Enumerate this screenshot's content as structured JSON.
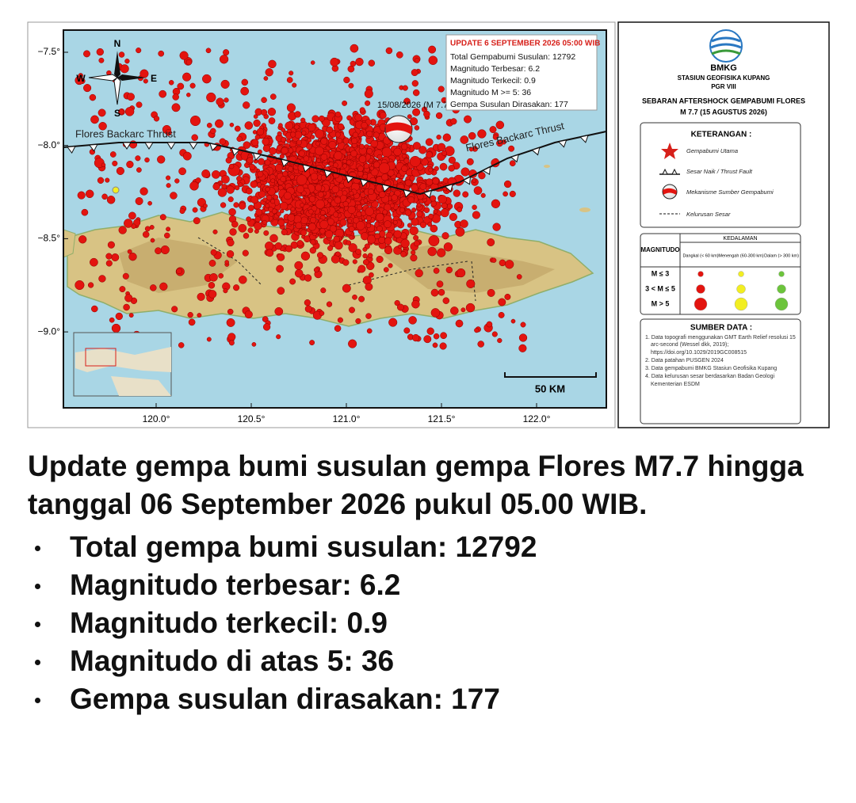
{
  "map": {
    "lat_labels": [
      "−7.5°",
      "−8.0°",
      "−8.5°",
      "−9.0°"
    ],
    "lon_labels": [
      "120.0°",
      "120.5°",
      "121.0°",
      "121.5°",
      "122.0°"
    ],
    "compass": {
      "n": "N",
      "s": "S",
      "e": "E",
      "w": "W"
    },
    "fault_labels": [
      "Flores Backarc Thrust",
      "Flores Backarc Thrust"
    ],
    "mainshock_label": "15/08/2026 (M 7.7)",
    "scale_label": "50 KM",
    "info_box": {
      "title": "UPDATE 6 SEPTEMBER 2026 05:00 WIB",
      "lines": [
        "Total Gempabumi Susulan: 12792",
        "Magnitudo Terbesar: 6.2",
        "Magnitudo Terkecil: 0.9",
        "Magnitudo M >= 5: 36",
        "Gempa Susulan Dirasakan: 177"
      ]
    }
  },
  "legend": {
    "agency": "BMKG",
    "station": "STASIUN GEOFISIKA KUPANG",
    "region": "PGR VIII",
    "title_lines": [
      "SEBARAN AFTERSHOCK GEMPABUMI FLORES",
      "M 7.7 (15 AGUSTUS 2026)"
    ],
    "keterangan": {
      "header": "KETERANGAN :",
      "items": [
        "Gempabumi Utama",
        "Sesar Naik / Thrust Fault",
        "Mekanisme Sumber Gempabumi",
        "Kelurusan Sesar"
      ]
    },
    "magnitude_table": {
      "depth_header": "KEDALAMAN",
      "row_header": "MAGNITUDO",
      "columns": [
        "Dangkal (< 60 km)",
        "Menengah (60-300 km)",
        "Dalam (> 300 km)"
      ],
      "rows": [
        "M ≤ 3",
        "3 < M ≤ 5",
        "M > 5"
      ]
    },
    "sources": {
      "header": "SUMBER DATA :",
      "items": [
        "1. Data topografi menggunakan GMT Earth Relief resolusi 15 arc-second (Wessel dkk, 2019); https://doi.org/10.1029/2019GC008515",
        "2. Data patahan PUSGEN 2024",
        "3. Data gempabumi BMKG Stasiun Geofisika Kupang",
        "4. Data kelurusan sesar berdasarkan Badan Geologi Kementerian ESDM"
      ]
    }
  },
  "caption": {
    "heading": "Update gempa bumi susulan gempa Flores M7.7 hingga tanggal 06 September 2026 pukul 05.00 WIB.",
    "items": [
      "Total gempa bumi susulan: 12792",
      "Magnitudo terbesar: 6.2",
      "Magnitudo terkecil: 0.9",
      "Magnitudo di atas 5: 36",
      "Gempa susulan dirasakan: 177"
    ]
  }
}
